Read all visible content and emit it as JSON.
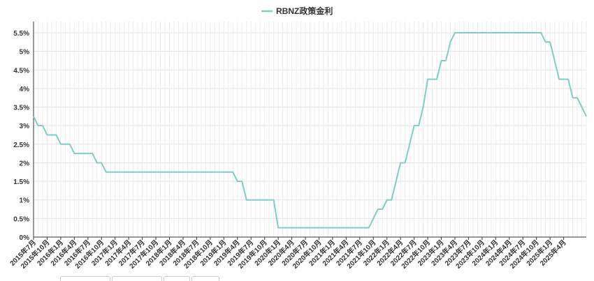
{
  "chart_data": {
    "type": "line",
    "legend": {
      "position": "top-center"
    },
    "series": [
      {
        "name": "RBNZ政策金利",
        "color": "#7ecec4",
        "values": [
          3.25,
          3.0,
          3.0,
          2.75,
          2.75,
          2.75,
          2.5,
          2.5,
          2.5,
          2.25,
          2.25,
          2.25,
          2.25,
          2.25,
          2.0,
          2.0,
          1.75,
          1.75,
          1.75,
          1.75,
          1.75,
          1.75,
          1.75,
          1.75,
          1.75,
          1.75,
          1.75,
          1.75,
          1.75,
          1.75,
          1.75,
          1.75,
          1.75,
          1.75,
          1.75,
          1.75,
          1.75,
          1.75,
          1.75,
          1.75,
          1.75,
          1.75,
          1.75,
          1.75,
          1.75,
          1.5,
          1.5,
          1.0,
          1.0,
          1.0,
          1.0,
          1.0,
          1.0,
          1.0,
          0.25,
          0.25,
          0.25,
          0.25,
          0.25,
          0.25,
          0.25,
          0.25,
          0.25,
          0.25,
          0.25,
          0.25,
          0.25,
          0.25,
          0.25,
          0.25,
          0.25,
          0.25,
          0.25,
          0.25,
          0.25,
          0.5,
          0.75,
          0.75,
          1.0,
          1.0,
          1.5,
          2.0,
          2.0,
          2.5,
          3.0,
          3.0,
          3.5,
          4.25,
          4.25,
          4.25,
          4.75,
          4.75,
          5.25,
          5.5,
          5.5,
          5.5,
          5.5,
          5.5,
          5.5,
          5.5,
          5.5,
          5.5,
          5.5,
          5.5,
          5.5,
          5.5,
          5.5,
          5.5,
          5.5,
          5.5,
          5.5,
          5.5,
          5.5,
          5.25,
          5.25,
          4.75,
          4.25,
          4.25,
          4.25,
          3.75,
          3.75,
          3.5,
          3.25
        ]
      }
    ],
    "x_labels": [
      "2015年7月",
      "2015年10月",
      "2016年1月",
      "2016年4月",
      "2016年7月",
      "2016年10月",
      "2017年1月",
      "2017年4月",
      "2017年7月",
      "2017年10月",
      "2018年1月",
      "2018年4月",
      "2018年7月",
      "2018年10月",
      "2019年1月",
      "2019年4月",
      "2019年7月",
      "2019年10月",
      "2020年1月",
      "2020年4月",
      "2020年7月",
      "2020年10月",
      "2021年1月",
      "2021年4月",
      "2021年7月",
      "2021年10月",
      "2022年1月",
      "2022年4月",
      "2022年7月",
      "2022年10月",
      "2023年1月",
      "2023年4月",
      "2023年7月",
      "2023年10月",
      "2024年1月",
      "2024年4月",
      "2024年7月",
      "2024年10月",
      "2025年1月",
      "2025年4月"
    ],
    "y_ticks": [
      "0%",
      "0.5%",
      "1%",
      "1.5%",
      "2%",
      "2.5%",
      "3%",
      "3.5%",
      "4%",
      "4.5%",
      "5%",
      "5.5%"
    ],
    "ylim": [
      0,
      5.8
    ],
    "grid": true
  }
}
